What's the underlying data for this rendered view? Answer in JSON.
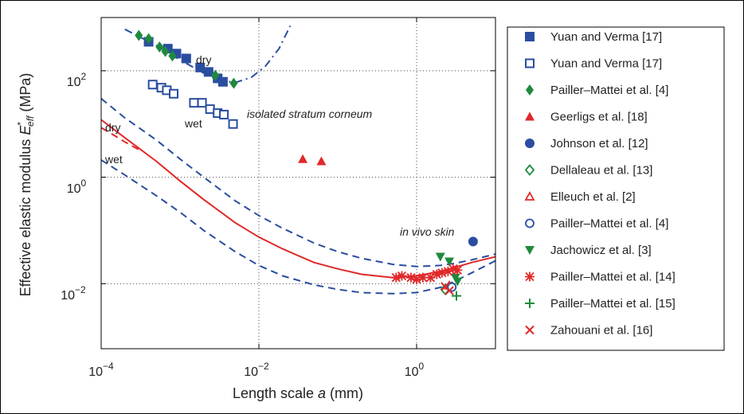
{
  "chart_data": {
    "type": "scatter",
    "xscale": "log",
    "yscale": "log",
    "xlim": [
      0.0001,
      10
    ],
    "ylim": [
      0.0006,
      1000
    ],
    "xlabel": "Length scale a (mm)",
    "ylabel": "Effective elastic modulus E*eff (MPa)",
    "x_ticks": [
      "10^-4",
      "10^-2",
      "10^0"
    ],
    "y_ticks": [
      "10^-2",
      "10^0",
      "10^2"
    ],
    "grid": true,
    "legend_position": "right",
    "annotations": [
      "dry",
      "wet",
      "dry",
      "wet",
      "isolated stratum corneum",
      "in vivo skin"
    ],
    "series": [
      {
        "name": "Yuan and Verma [17]",
        "marker": "square-filled",
        "color": "#2a4da0",
        "points": [
          [
            0.0004,
            350
          ],
          [
            0.0007,
            260
          ],
          [
            0.0009,
            210
          ],
          [
            0.0012,
            170
          ],
          [
            0.0018,
            115
          ],
          [
            0.0023,
            95
          ],
          [
            0.003,
            72
          ],
          [
            0.0035,
            62
          ]
        ]
      },
      {
        "name": "Yuan and Verma [17]",
        "marker": "square-open",
        "color": "#2a4da0",
        "points": [
          [
            0.00045,
            55
          ],
          [
            0.00058,
            48
          ],
          [
            0.00068,
            43
          ],
          [
            0.00083,
            37
          ],
          [
            0.0015,
            25
          ],
          [
            0.0019,
            25
          ],
          [
            0.0024,
            19
          ],
          [
            0.003,
            16
          ],
          [
            0.0036,
            15
          ],
          [
            0.0047,
            10
          ]
        ]
      },
      {
        "name": "Pailler–Mattei et al. [4]",
        "marker": "diamond-filled",
        "color": "#1e8a3c",
        "points": [
          [
            0.0003,
            460
          ],
          [
            0.0004,
            400
          ],
          [
            0.00055,
            280
          ],
          [
            0.00065,
            230
          ],
          [
            0.0008,
            190
          ],
          [
            0.0028,
            82
          ],
          [
            0.0048,
            58
          ]
        ]
      },
      {
        "name": "Geerligs et al. [18]",
        "marker": "triangle-filled",
        "color": "#e02828",
        "points": [
          [
            0.036,
            2.2
          ],
          [
            0.062,
            2.0
          ]
        ]
      },
      {
        "name": "Johnson et al. [12]",
        "marker": "circle-filled",
        "color": "#2a4da0",
        "points": [
          [
            5.2,
            0.062
          ]
        ]
      },
      {
        "name": "Dellaleau et al. [13]",
        "marker": "diamond-open",
        "color": "#1e8a3c",
        "points": [
          [
            2.3,
            0.0078
          ]
        ]
      },
      {
        "name": "Elleuch et al. [2]",
        "marker": "triangle-open",
        "color": "#e02828",
        "points": [
          [
            2.6,
            0.0092
          ]
        ]
      },
      {
        "name": "Pailler–Mattei et al. [4]",
        "marker": "circle-open",
        "color": "#2a4da0",
        "points": [
          [
            2.8,
            0.0086
          ]
        ]
      },
      {
        "name": "Jachowicz et al. [3]",
        "marker": "triangle-down-filled",
        "color": "#1e8a3c",
        "points": [
          [
            2.0,
            0.032
          ],
          [
            2.6,
            0.026
          ],
          [
            3.1,
            0.013
          ],
          [
            3.3,
            0.011
          ]
        ]
      },
      {
        "name": "Pailler–Mattei et al. [14]",
        "marker": "asterisk",
        "color": "#e02828",
        "points": [
          [
            0.55,
            0.013
          ],
          [
            0.65,
            0.014
          ],
          [
            0.85,
            0.013
          ],
          [
            1.0,
            0.012
          ],
          [
            1.2,
            0.013
          ],
          [
            1.5,
            0.013
          ],
          [
            1.8,
            0.015
          ],
          [
            2.1,
            0.016
          ],
          [
            2.5,
            0.017
          ],
          [
            2.9,
            0.019
          ],
          [
            3.3,
            0.018
          ]
        ]
      },
      {
        "name": "Pailler–Mattei et al. [15]",
        "marker": "plus",
        "color": "#1e8a3c",
        "points": [
          [
            3.2,
            0.0059
          ]
        ]
      },
      {
        "name": "Zahouani et al. [16]",
        "marker": "cross",
        "color": "#e02828",
        "points": [
          [
            2.3,
            0.0088
          ],
          [
            2.6,
            0.0074
          ]
        ]
      }
    ],
    "curves": [
      {
        "id": "model-dry",
        "style": "solid",
        "color": "#e02828",
        "points": [
          [
            0.0001,
            12
          ],
          [
            0.0002,
            5.5
          ],
          [
            0.0005,
            2.0
          ],
          [
            0.001,
            0.85
          ],
          [
            0.002,
            0.38
          ],
          [
            0.005,
            0.14
          ],
          [
            0.01,
            0.075
          ],
          [
            0.02,
            0.045
          ],
          [
            0.05,
            0.025
          ],
          [
            0.1,
            0.019
          ],
          [
            0.2,
            0.015
          ],
          [
            0.5,
            0.013
          ],
          [
            1,
            0.014
          ],
          [
            2,
            0.017
          ],
          [
            3,
            0.02
          ],
          [
            5,
            0.025
          ],
          [
            10,
            0.032
          ]
        ]
      },
      {
        "id": "model-wet",
        "style": "dashed",
        "color": "#e02828",
        "points": [
          [
            0.0001,
            8.5
          ],
          [
            0.00015,
            6.0
          ],
          [
            0.0002,
            4.6
          ],
          [
            0.0003,
            3.3
          ]
        ]
      },
      {
        "id": "band-upper",
        "style": "dashed",
        "color": "#2a4da0",
        "points": [
          [
            0.0001,
            30
          ],
          [
            0.0002,
            13
          ],
          [
            0.0005,
            5
          ],
          [
            0.001,
            2.2
          ],
          [
            0.002,
            1.0
          ],
          [
            0.005,
            0.36
          ],
          [
            0.01,
            0.19
          ],
          [
            0.02,
            0.11
          ],
          [
            0.05,
            0.058
          ],
          [
            0.1,
            0.04
          ],
          [
            0.2,
            0.03
          ],
          [
            0.5,
            0.023
          ],
          [
            1,
            0.021
          ],
          [
            2,
            0.022
          ],
          [
            3,
            0.024
          ],
          [
            5,
            0.028
          ],
          [
            10,
            0.036
          ]
        ]
      },
      {
        "id": "band-lower",
        "style": "dashed",
        "color": "#2a4da0",
        "points": [
          [
            0.0001,
            2.1
          ],
          [
            0.0002,
            1.1
          ],
          [
            0.0005,
            0.45
          ],
          [
            0.001,
            0.22
          ],
          [
            0.002,
            0.1
          ],
          [
            0.005,
            0.04
          ],
          [
            0.01,
            0.022
          ],
          [
            0.02,
            0.014
          ],
          [
            0.05,
            0.0095
          ],
          [
            0.1,
            0.0078
          ],
          [
            0.2,
            0.0068
          ],
          [
            0.5,
            0.0065
          ],
          [
            1,
            0.0068
          ],
          [
            2,
            0.0085
          ],
          [
            3,
            0.011
          ],
          [
            5,
            0.016
          ],
          [
            10,
            0.027
          ]
        ]
      },
      {
        "id": "stratum-corneum-fit",
        "style": "dashdot",
        "color": "#2a4da0",
        "points": [
          [
            0.0002,
            600
          ],
          [
            0.0005,
            300
          ],
          [
            0.001,
            160
          ],
          [
            0.002,
            90
          ],
          [
            0.003,
            68
          ],
          [
            0.005,
            60
          ],
          [
            0.008,
            75
          ],
          [
            0.012,
            120
          ],
          [
            0.018,
            260
          ],
          [
            0.025,
            700
          ]
        ]
      }
    ]
  }
}
